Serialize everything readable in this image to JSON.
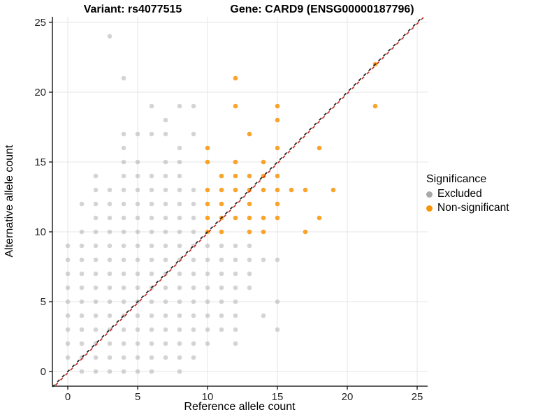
{
  "header": {
    "variant_title": "Variant: rs4077515",
    "gene_title": "Gene: CARD9 (ENSG00000187796)"
  },
  "axes": {
    "x": {
      "label": "Reference allele count",
      "ticks": [
        0,
        5,
        10,
        15,
        20,
        25
      ],
      "range": [
        -1.1,
        26.1
      ]
    },
    "y": {
      "label": "Alternative allele count",
      "ticks": [
        0,
        5,
        10,
        15,
        20,
        25
      ],
      "range": [
        -1.1,
        26.1
      ]
    }
  },
  "legend": {
    "title": "Significance",
    "items": [
      {
        "label": "Excluded",
        "color": "#A9A9A9"
      },
      {
        "label": "Non-significant",
        "color": "#F89406"
      }
    ]
  },
  "colors": {
    "excluded": "#A9A9A9",
    "non_significant": "#F89406",
    "diagonal_black": "#1A1A1A",
    "diagonal_red": "#C92A20",
    "gridline": "#E6E6E6",
    "axis_line": "#000000",
    "tick_text": "#262626"
  },
  "chart_data": {
    "type": "scatter",
    "title": "Variant: rs4077515 — Gene: CARD9 (ENSG00000187796)",
    "xlabel": "Reference allele count",
    "ylabel": "Alternative allele count",
    "xlim": [
      -1.1,
      26.1
    ],
    "ylim": [
      -1.1,
      26.1
    ],
    "grid": "major gridlines every 5 units",
    "legend_position": "right",
    "identity_line": {
      "equation": "y = x",
      "style": "dashed",
      "colors": [
        "#1A1A1A",
        "#C92A20"
      ]
    },
    "series": [
      {
        "name": "Excluded",
        "color": "#A9A9A9",
        "opacity": 0.5,
        "points": [
          [
            1,
            0
          ],
          [
            2,
            0
          ],
          [
            3,
            0
          ],
          [
            4,
            0
          ],
          [
            5,
            0
          ],
          [
            6,
            0
          ],
          [
            8,
            0
          ],
          [
            0,
            1
          ],
          [
            1,
            1
          ],
          [
            2,
            1
          ],
          [
            3,
            1
          ],
          [
            4,
            1
          ],
          [
            5,
            1
          ],
          [
            6,
            1
          ],
          [
            7,
            1
          ],
          [
            8,
            1
          ],
          [
            9,
            1
          ],
          [
            0,
            2
          ],
          [
            1,
            2
          ],
          [
            2,
            2
          ],
          [
            3,
            2
          ],
          [
            4,
            2
          ],
          [
            5,
            2
          ],
          [
            6,
            2
          ],
          [
            7,
            2
          ],
          [
            8,
            2
          ],
          [
            9,
            2
          ],
          [
            10,
            2
          ],
          [
            12,
            2
          ],
          [
            0,
            3
          ],
          [
            1,
            3
          ],
          [
            2,
            3
          ],
          [
            3,
            3
          ],
          [
            4,
            3
          ],
          [
            5,
            3
          ],
          [
            6,
            3
          ],
          [
            7,
            3
          ],
          [
            8,
            3
          ],
          [
            9,
            3
          ],
          [
            10,
            3
          ],
          [
            11,
            3
          ],
          [
            12,
            3
          ],
          [
            15,
            3
          ],
          [
            0,
            4
          ],
          [
            1,
            4
          ],
          [
            2,
            4
          ],
          [
            3,
            4
          ],
          [
            4,
            4
          ],
          [
            5,
            4
          ],
          [
            6,
            4
          ],
          [
            7,
            4
          ],
          [
            8,
            4
          ],
          [
            9,
            4
          ],
          [
            10,
            4
          ],
          [
            11,
            4
          ],
          [
            12,
            4
          ],
          [
            14,
            4
          ],
          [
            0,
            5
          ],
          [
            1,
            5
          ],
          [
            2,
            5
          ],
          [
            3,
            5
          ],
          [
            4,
            5
          ],
          [
            5,
            5
          ],
          [
            6,
            5
          ],
          [
            7,
            5
          ],
          [
            8,
            5
          ],
          [
            9,
            5
          ],
          [
            10,
            5
          ],
          [
            11,
            5
          ],
          [
            12,
            5
          ],
          [
            15,
            5
          ],
          [
            0,
            6
          ],
          [
            1,
            6
          ],
          [
            2,
            6
          ],
          [
            3,
            6
          ],
          [
            4,
            6
          ],
          [
            5,
            6
          ],
          [
            6,
            6
          ],
          [
            7,
            6
          ],
          [
            8,
            6
          ],
          [
            9,
            6
          ],
          [
            10,
            6
          ],
          [
            11,
            6
          ],
          [
            12,
            6
          ],
          [
            13,
            6
          ],
          [
            0,
            7
          ],
          [
            1,
            7
          ],
          [
            2,
            7
          ],
          [
            3,
            7
          ],
          [
            4,
            7
          ],
          [
            5,
            7
          ],
          [
            6,
            7
          ],
          [
            7,
            7
          ],
          [
            8,
            7
          ],
          [
            9,
            7
          ],
          [
            10,
            7
          ],
          [
            11,
            7
          ],
          [
            12,
            7
          ],
          [
            13,
            7
          ],
          [
            0,
            8
          ],
          [
            1,
            8
          ],
          [
            2,
            8
          ],
          [
            3,
            8
          ],
          [
            4,
            8
          ],
          [
            5,
            8
          ],
          [
            6,
            8
          ],
          [
            7,
            8
          ],
          [
            8,
            8
          ],
          [
            9,
            8
          ],
          [
            10,
            8
          ],
          [
            11,
            8
          ],
          [
            12,
            8
          ],
          [
            13,
            8
          ],
          [
            14,
            8
          ],
          [
            15,
            8
          ],
          [
            0,
            9
          ],
          [
            1,
            9
          ],
          [
            2,
            9
          ],
          [
            3,
            9
          ],
          [
            4,
            9
          ],
          [
            5,
            9
          ],
          [
            6,
            9
          ],
          [
            7,
            9
          ],
          [
            8,
            9
          ],
          [
            9,
            9
          ],
          [
            10,
            9
          ],
          [
            11,
            9
          ],
          [
            12,
            9
          ],
          [
            13,
            9
          ],
          [
            1,
            10
          ],
          [
            2,
            10
          ],
          [
            3,
            10
          ],
          [
            4,
            10
          ],
          [
            5,
            10
          ],
          [
            6,
            10
          ],
          [
            7,
            10
          ],
          [
            8,
            10
          ],
          [
            9,
            10
          ],
          [
            2,
            11
          ],
          [
            3,
            11
          ],
          [
            4,
            11
          ],
          [
            5,
            11
          ],
          [
            6,
            11
          ],
          [
            7,
            11
          ],
          [
            8,
            11
          ],
          [
            9,
            11
          ],
          [
            1,
            12
          ],
          [
            2,
            12
          ],
          [
            3,
            12
          ],
          [
            4,
            12
          ],
          [
            5,
            12
          ],
          [
            6,
            12
          ],
          [
            7,
            12
          ],
          [
            8,
            12
          ],
          [
            9,
            12
          ],
          [
            2,
            13
          ],
          [
            3,
            13
          ],
          [
            4,
            13
          ],
          [
            5,
            13
          ],
          [
            6,
            13
          ],
          [
            7,
            13
          ],
          [
            8,
            13
          ],
          [
            9,
            13
          ],
          [
            2,
            14
          ],
          [
            4,
            14
          ],
          [
            5,
            14
          ],
          [
            6,
            14
          ],
          [
            7,
            14
          ],
          [
            8,
            14
          ],
          [
            4,
            15
          ],
          [
            5,
            15
          ],
          [
            7,
            15
          ],
          [
            8,
            15
          ],
          [
            4,
            16
          ],
          [
            8,
            16
          ],
          [
            4,
            17
          ],
          [
            5,
            17
          ],
          [
            6,
            17
          ],
          [
            7,
            17
          ],
          [
            9,
            17
          ],
          [
            7,
            18
          ],
          [
            6,
            19
          ],
          [
            8,
            19
          ],
          [
            9,
            19
          ],
          [
            4,
            21
          ],
          [
            3,
            24
          ]
        ]
      },
      {
        "name": "Non-significant",
        "color": "#F89406",
        "opacity": 0.85,
        "points": [
          [
            10,
            10
          ],
          [
            11,
            10
          ],
          [
            13,
            10
          ],
          [
            14,
            10
          ],
          [
            17,
            10
          ],
          [
            10,
            11
          ],
          [
            11,
            11
          ],
          [
            12,
            11
          ],
          [
            13,
            11
          ],
          [
            14,
            11
          ],
          [
            15,
            11
          ],
          [
            18,
            11
          ],
          [
            10,
            12
          ],
          [
            11,
            12
          ],
          [
            13,
            12
          ],
          [
            15,
            12
          ],
          [
            10,
            13
          ],
          [
            11,
            13
          ],
          [
            12,
            13
          ],
          [
            13,
            13
          ],
          [
            14,
            13
          ],
          [
            15,
            13
          ],
          [
            16,
            13
          ],
          [
            17,
            13
          ],
          [
            19,
            13
          ],
          [
            11,
            14
          ],
          [
            12,
            14
          ],
          [
            13,
            14
          ],
          [
            14,
            14
          ],
          [
            15,
            14
          ],
          [
            10,
            15
          ],
          [
            12,
            15
          ],
          [
            14,
            15
          ],
          [
            10,
            16
          ],
          [
            15,
            16
          ],
          [
            18,
            16
          ],
          [
            13,
            17
          ],
          [
            15,
            18
          ],
          [
            12,
            19
          ],
          [
            15,
            19
          ],
          [
            22,
            19
          ],
          [
            12,
            21
          ],
          [
            22,
            22
          ]
        ]
      }
    ]
  }
}
